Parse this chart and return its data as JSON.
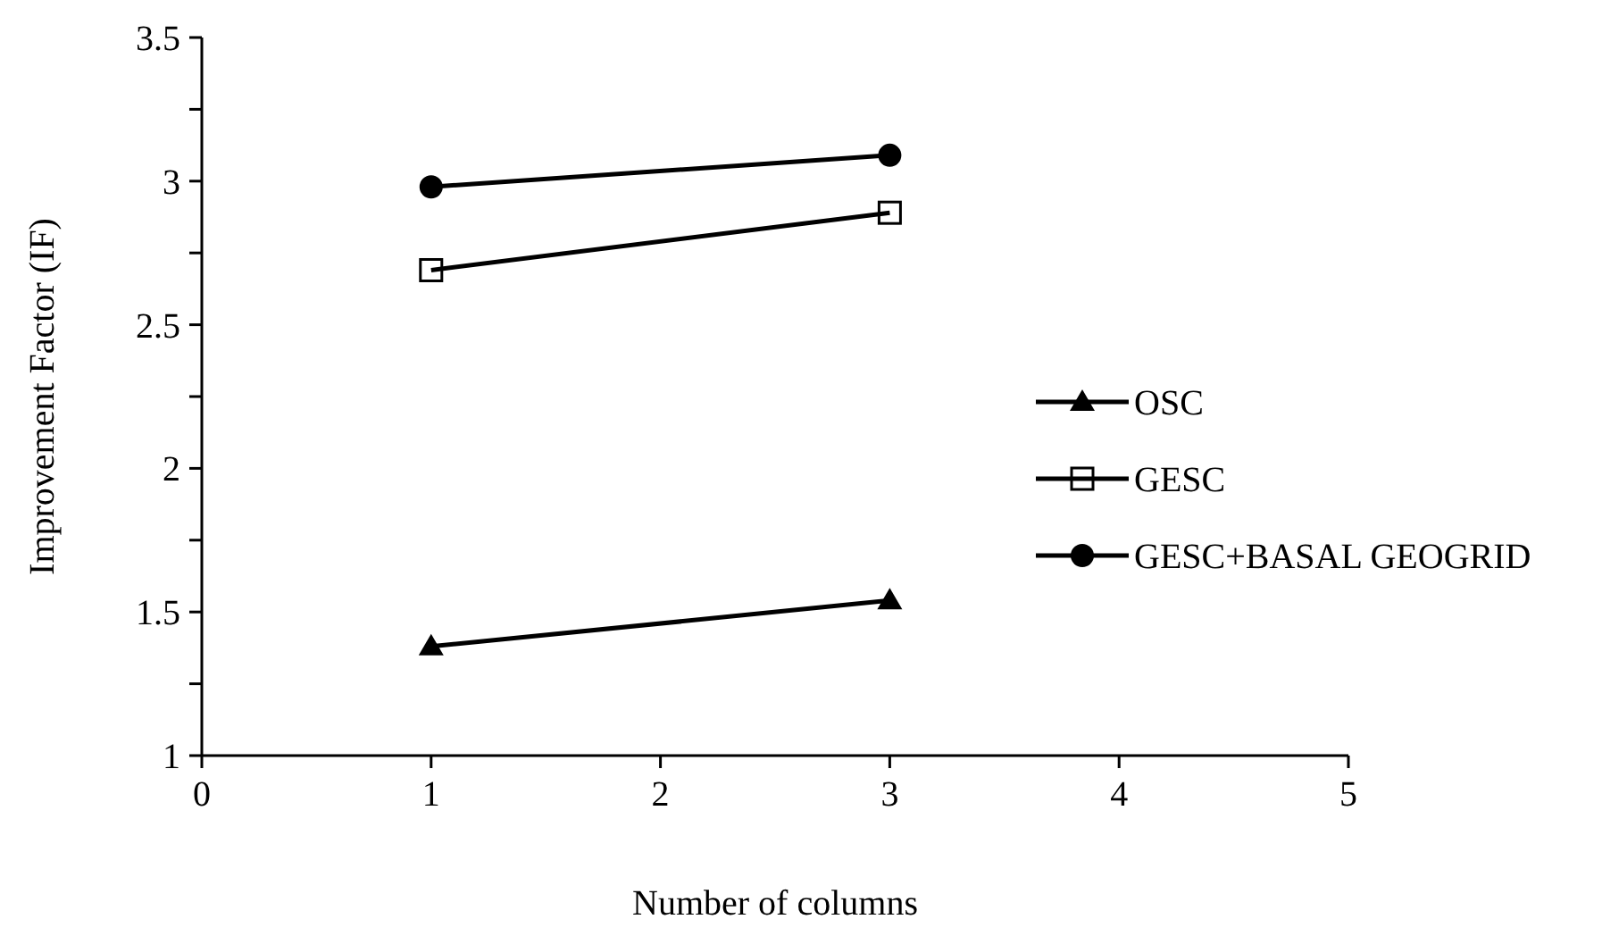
{
  "chart_data": {
    "type": "line",
    "xlabel": "Number of columns",
    "ylabel": "Improvement Factor  (IF)",
    "x": [
      1,
      3
    ],
    "series": [
      {
        "name": "OSC",
        "color": "#000000",
        "marker": "triangle",
        "values": [
          1.38,
          1.54
        ]
      },
      {
        "name": "GESC",
        "color": "#000000",
        "marker": "square",
        "values": [
          2.69,
          2.89
        ]
      },
      {
        "name": "GESC+BASAL GEOGRID",
        "color": "#000000",
        "marker": "circle",
        "values": [
          2.98,
          3.09
        ]
      }
    ],
    "xlim": [
      0,
      5
    ],
    "xticks": [
      0,
      1,
      2,
      3,
      4,
      5
    ],
    "ylim": [
      1,
      3.5
    ],
    "yticks": [
      1,
      {
        "value": 1.25,
        "label": null
      },
      1.5,
      {
        "value": 1.75,
        "label": null
      },
      2,
      {
        "value": 2.25,
        "label": null
      },
      2.5,
      {
        "value": 2.75,
        "label": null
      },
      3,
      {
        "value": 3.25,
        "label": null
      },
      3.5
    ],
    "grid": false,
    "legend": "right",
    "line_style": "solid"
  }
}
